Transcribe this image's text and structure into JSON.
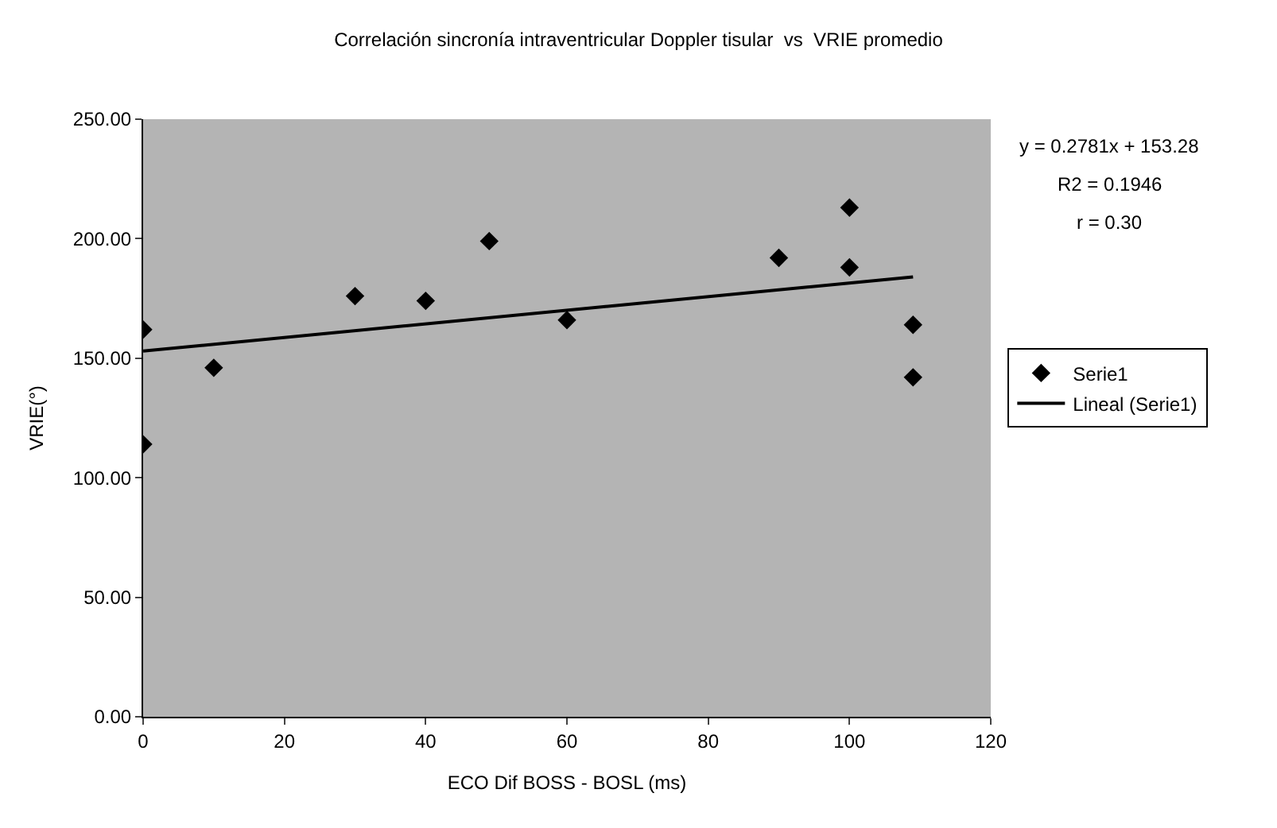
{
  "chart_data": {
    "type": "scatter",
    "title": "Correlación sincronía intraventricular Doppler tisular  vs  VRIE promedio",
    "xlabel": "ECO Dif BOSS - BOSL (ms)",
    "ylabel": "VRIE(°)",
    "x": [
      0,
      0,
      10,
      30,
      40,
      49,
      60,
      90,
      100,
      100,
      109,
      109
    ],
    "series": [
      {
        "name": "Serie1",
        "color": "#000000",
        "marker": "diamond",
        "values": [
          162,
          114,
          146,
          176,
          174,
          199,
          166,
          192,
          213,
          188,
          164,
          142
        ]
      },
      {
        "name": "Lineal (Serie1)",
        "type": "line",
        "color": "#000000",
        "marker": "none",
        "line_style": "solid",
        "x": [
          0,
          109
        ],
        "values": [
          153,
          184
        ]
      }
    ],
    "annotations": [
      "y = 0.2781x + 153.28",
      "R2 = 0.1946",
      "r = 0.30"
    ],
    "xlim": [
      0,
      120
    ],
    "xticks": [
      0,
      20,
      40,
      60,
      80,
      100,
      120
    ],
    "ylim": [
      0,
      250
    ],
    "yticks": [
      {
        "value": 0,
        "label": "0.00"
      },
      {
        "value": 50,
        "label": "50.00"
      },
      {
        "value": 100,
        "label": "100.00"
      },
      {
        "value": 150,
        "label": "150.00"
      },
      {
        "value": 200,
        "label": "200.00"
      },
      {
        "value": 250,
        "label": "250.00"
      }
    ],
    "grid": false,
    "legend": "right"
  }
}
